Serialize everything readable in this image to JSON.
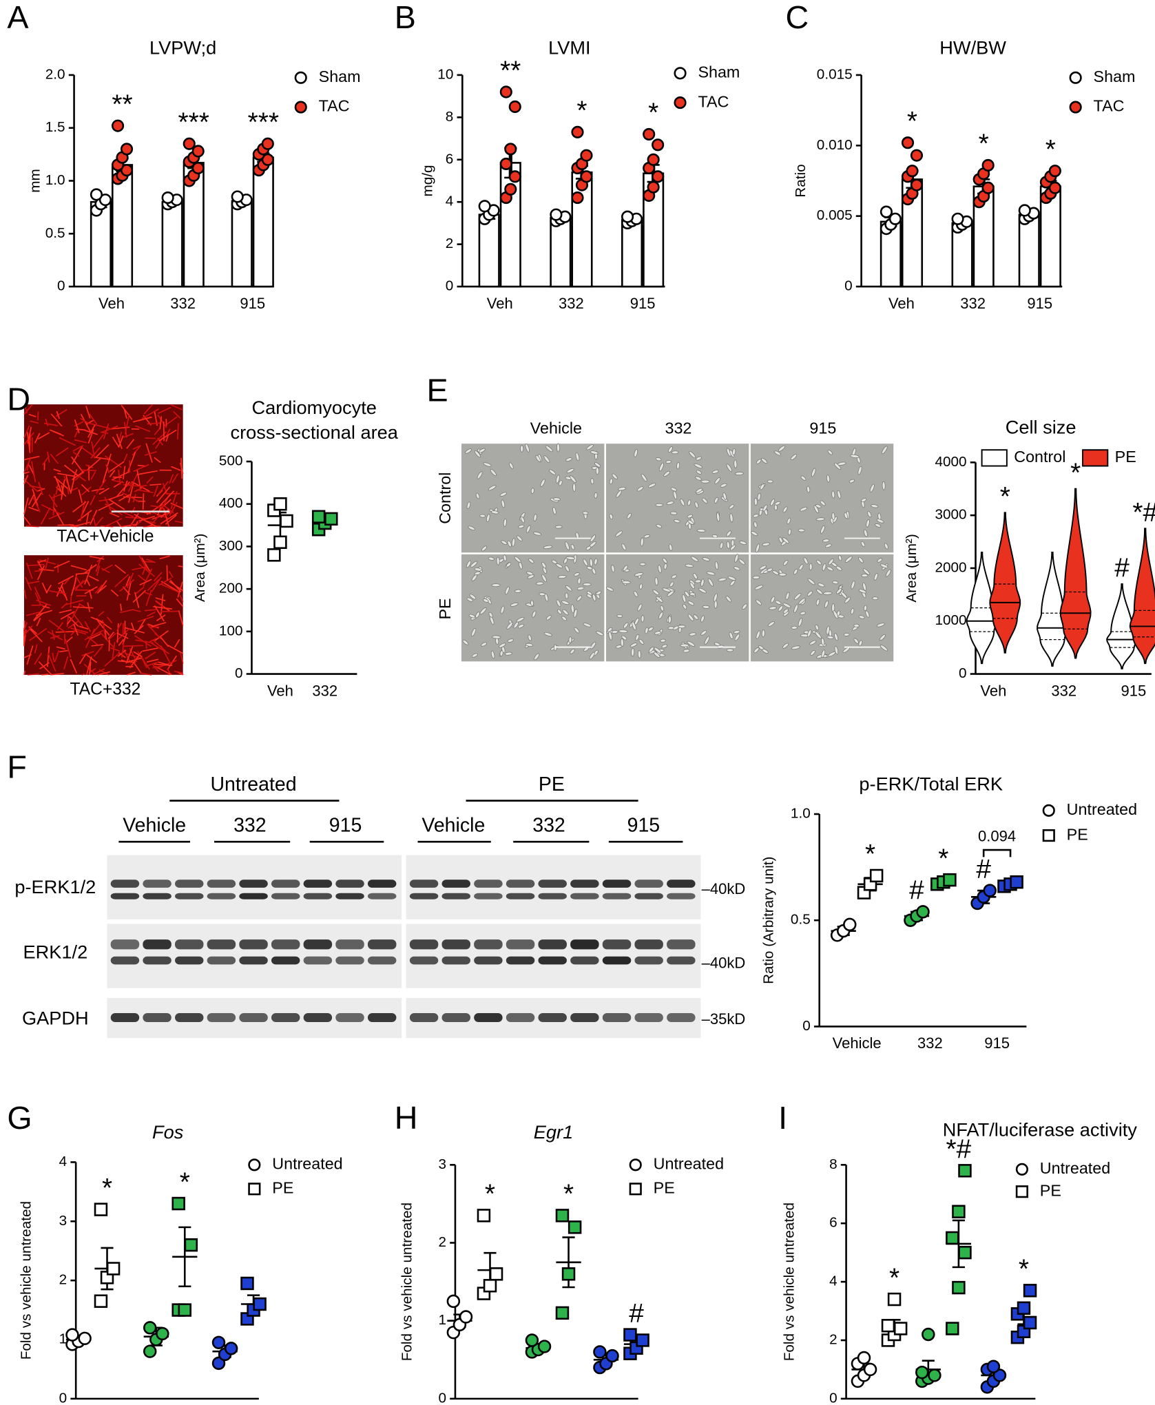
{
  "figure": {
    "panels": [
      "A",
      "B",
      "C",
      "D",
      "E",
      "F",
      "G",
      "H",
      "I"
    ],
    "D": {
      "labels": [
        "TAC+Vehicle",
        "TAC+332"
      ]
    },
    "E": {
      "columns": [
        "Vehicle",
        "332",
        "915"
      ],
      "rows": [
        "Control",
        "PE"
      ]
    },
    "F": {
      "groups": [
        "Untreated",
        "PE"
      ],
      "treatments": [
        "Vehicle",
        "332",
        "915",
        "Vehicle",
        "332",
        "915"
      ],
      "rows": [
        "p-ERK1/2",
        "ERK1/2",
        "GAPDH"
      ],
      "sizes": [
        "–40kD",
        "–40kD",
        "–35kD"
      ]
    }
  },
  "chart_data": [
    {
      "type": "bar",
      "title": "LVPW;d",
      "ylabel": "mm",
      "categories": [
        "Veh",
        "332",
        "915"
      ],
      "ylim": [
        0,
        2
      ],
      "yticks": [
        0,
        0.5,
        {
          "value": 1,
          "label": "1.0"
        },
        1.5,
        {
          "value": 2,
          "label": "2.0"
        }
      ],
      "series": [
        {
          "name": "Sham",
          "color": "#ffffff",
          "values": [
            0.8,
            0.8,
            0.81
          ],
          "errors": [
            0.05,
            0.02,
            0.02
          ],
          "points": [
            [
              0.72,
              0.78,
              0.82,
              0.87
            ],
            [
              0.78,
              0.8,
              0.82,
              0.84
            ],
            [
              0.78,
              0.8,
              0.82,
              0.85
            ]
          ]
        },
        {
          "name": "TAC",
          "color": "#e8311f",
          "values": [
            1.15,
            1.17,
            1.22
          ],
          "errors": [
            0.06,
            0.05,
            0.04
          ],
          "points": [
            [
              1.02,
              1.05,
              1.1,
              1.15,
              1.22,
              1.3,
              1.52
            ],
            [
              1.0,
              1.05,
              1.12,
              1.18,
              1.22,
              1.28,
              1.35
            ],
            [
              1.1,
              1.15,
              1.2,
              1.25,
              1.3,
              1.35
            ]
          ],
          "annotations": [
            "**",
            "***",
            "***"
          ]
        }
      ]
    },
    {
      "type": "bar",
      "title": "LVMI",
      "ylabel": "mg/g",
      "categories": [
        "Veh",
        "332",
        "915"
      ],
      "ylim": [
        0,
        10
      ],
      "yticks": [
        0,
        2,
        4,
        6,
        8,
        10
      ],
      "series": [
        {
          "name": "Sham",
          "color": "#ffffff",
          "values": [
            3.4,
            3.25,
            3.15
          ],
          "errors": [
            0.2,
            0.1,
            0.1
          ],
          "points": [
            [
              3.2,
              3.4,
              3.6,
              3.8
            ],
            [
              3.1,
              3.2,
              3.3,
              3.4
            ],
            [
              3.0,
              3.1,
              3.2,
              3.3
            ]
          ]
        },
        {
          "name": "TAC",
          "color": "#e8311f",
          "values": [
            5.85,
            5.4,
            5.35
          ],
          "errors": [
            0.7,
            0.3,
            0.4
          ],
          "points": [
            [
              4.2,
              4.6,
              5.2,
              5.8,
              6.5,
              8.5,
              9.2
            ],
            [
              4.2,
              4.8,
              5.2,
              5.6,
              5.8,
              6.2,
              7.3
            ],
            [
              4.3,
              4.7,
              5.2,
              5.6,
              6.0,
              6.7,
              7.2
            ]
          ],
          "annotations": [
            "**",
            "*",
            "*"
          ]
        }
      ]
    },
    {
      "type": "bar",
      "title": "HW/BW",
      "ylabel": "Ratio",
      "categories": [
        "Veh",
        "332",
        "915"
      ],
      "ylim": [
        0,
        0.015
      ],
      "yticks": [
        0,
        0.005,
        {
          "value": 0.01,
          "label": "0.010"
        },
        0.015
      ],
      "series": [
        {
          "name": "Sham",
          "color": "#ffffff",
          "values": [
            0.0046,
            0.0045,
            0.0051
          ],
          "errors": [
            0.0003,
            0.0002,
            0.0002
          ],
          "points": [
            [
              0.0041,
              0.0044,
              0.0048,
              0.0053
            ],
            [
              0.0042,
              0.0044,
              0.0046,
              0.0048
            ],
            [
              0.0048,
              0.005,
              0.0052,
              0.0054
            ]
          ]
        },
        {
          "name": "TAC",
          "color": "#e8311f",
          "values": [
            0.0076,
            0.0071,
            0.0071
          ],
          "errors": [
            0.0006,
            0.0005,
            0.0004
          ],
          "points": [
            [
              0.0062,
              0.0066,
              0.0072,
              0.0078,
              0.0082,
              0.0093,
              0.0102
            ],
            [
              0.006,
              0.0064,
              0.007,
              0.0076,
              0.008,
              0.0086
            ],
            [
              0.0063,
              0.0066,
              0.007,
              0.0074,
              0.0078,
              0.0082
            ]
          ],
          "annotations": [
            "*",
            "*",
            "*"
          ]
        }
      ]
    },
    {
      "type": "dot",
      "title": [
        "Cardiomyocyte",
        "cross-sectional area"
      ],
      "ylabel": "Area (μm²)",
      "categories": [
        "Veh",
        "332"
      ],
      "ylim": [
        0,
        500
      ],
      "yticks": [
        0,
        100,
        200,
        300,
        400,
        500
      ],
      "series": [
        {
          "marker": "square",
          "colors": [
            "#ffffff",
            "#2db34a"
          ],
          "values": [
            350,
            355
          ],
          "errors": [
            30,
            12
          ],
          "points": [
            [
              280,
              310,
              360,
              385,
              400
            ],
            [
              340,
              355,
              365,
              370
            ]
          ]
        }
      ]
    },
    {
      "type": "violin",
      "title": "Cell size",
      "ylabel": "Area (μm²)",
      "categories": [
        "Veh",
        "332",
        "915"
      ],
      "ylim": [
        0,
        4000
      ],
      "yticks": [
        0,
        1000,
        2000,
        3000,
        4000
      ],
      "series": [
        {
          "name": "Control",
          "color": "#ffffff",
          "values": [
            1000,
            870,
            650
          ],
          "quartiles": [
            [
              800,
              1250
            ],
            [
              650,
              1150
            ],
            [
              500,
              800
            ]
          ],
          "ranges": [
            [
              200,
              2300
            ],
            [
              150,
              2300
            ],
            [
              100,
              1700
            ]
          ],
          "annotations": [
            null,
            null,
            "#"
          ]
        },
        {
          "name": "PE",
          "color": "#e8311f",
          "values": [
            1350,
            1150,
            900
          ],
          "quartiles": [
            [
              1050,
              1700
            ],
            [
              850,
              1550
            ],
            [
              700,
              1200
            ]
          ],
          "ranges": [
            [
              400,
              3050
            ],
            [
              300,
              3500
            ],
            [
              200,
              2750
            ]
          ],
          "annotations": [
            "*",
            "*",
            "*#"
          ]
        }
      ]
    },
    {
      "type": "dot",
      "title": "p-ERK/Total ERK",
      "ylabel": "Ratio (Arbitrary unit)",
      "categories": [
        "Vehicle",
        "332",
        "915"
      ],
      "ylim": [
        0,
        1
      ],
      "yticks": [
        0,
        0.5,
        {
          "value": 1,
          "label": "1.0"
        }
      ],
      "bracket": {
        "label": "0.094",
        "category": 2
      },
      "series": [
        {
          "name": "Untreated",
          "marker": "circle",
          "colors": [
            "#ffffff",
            "#2db34a",
            "#1f3fd1"
          ],
          "values": [
            0.45,
            0.52,
            0.61
          ],
          "errors": [
            0.02,
            0.02,
            0.03
          ],
          "points": [
            [
              0.43,
              0.45,
              0.48
            ],
            [
              0.5,
              0.52,
              0.54
            ],
            [
              0.58,
              0.61,
              0.64
            ]
          ],
          "annotations": [
            null,
            "#",
            "#"
          ]
        },
        {
          "name": "PE",
          "marker": "square",
          "colors": [
            "#ffffff",
            "#2db34a",
            "#1f3fd1"
          ],
          "values": [
            0.67,
            0.68,
            0.67
          ],
          "errors": [
            0.03,
            0.01,
            0.01
          ],
          "points": [
            [
              0.63,
              0.67,
              0.71
            ],
            [
              0.67,
              0.68,
              0.69
            ],
            [
              0.66,
              0.67,
              0.68
            ]
          ],
          "annotations": [
            "*",
            "*",
            null
          ]
        }
      ]
    },
    {
      "type": "dot",
      "title": "Fos",
      "title_italic": true,
      "ylabel": "Fold vs vehicle untreated",
      "categories": [
        "Vehicle",
        "332",
        "915"
      ],
      "ylim": [
        0,
        4
      ],
      "yticks": [
        0,
        1,
        2,
        3,
        4
      ],
      "series": [
        {
          "name": "Untreated",
          "marker": "circle",
          "colors": [
            "#ffffff",
            "#2db34a",
            "#1f3fd1"
          ],
          "values": [
            1.0,
            1.05,
            0.8
          ],
          "errors": [
            0.04,
            0.15,
            0.1
          ],
          "points": [
            [
              0.92,
              0.97,
              1.02,
              1.08
            ],
            [
              0.8,
              1.0,
              1.1,
              1.2
            ],
            [
              0.6,
              0.75,
              0.85,
              0.95
            ]
          ]
        },
        {
          "name": "PE",
          "marker": "square",
          "colors": [
            "#ffffff",
            "#2db34a",
            "#1f3fd1"
          ],
          "values": [
            2.2,
            2.4,
            1.6
          ],
          "errors": [
            0.35,
            0.5,
            0.15
          ],
          "points": [
            [
              1.65,
              2.05,
              2.2,
              3.2
            ],
            [
              1.5,
              1.5,
              2.6,
              3.3
            ],
            [
              1.35,
              1.5,
              1.6,
              1.95
            ]
          ],
          "annotations": [
            "*",
            "*",
            null
          ]
        }
      ]
    },
    {
      "type": "dot",
      "title": "Egr1",
      "title_italic": true,
      "ylabel": "Fold vs vehicle untreated",
      "categories": [
        "Vehicle",
        "332",
        "915"
      ],
      "ylim": [
        0,
        3
      ],
      "yticks": [
        0,
        1,
        2,
        3
      ],
      "series": [
        {
          "name": "Untreated",
          "marker": "circle",
          "colors": [
            "#ffffff",
            "#2db34a",
            "#1f3fd1"
          ],
          "values": [
            1.0,
            0.65,
            0.5
          ],
          "errors": [
            0.08,
            0.05,
            0.06
          ],
          "points": [
            [
              0.85,
              0.95,
              1.05,
              1.25
            ],
            [
              0.6,
              0.63,
              0.67,
              0.75
            ],
            [
              0.4,
              0.45,
              0.55,
              0.6
            ]
          ]
        },
        {
          "name": "PE",
          "marker": "square",
          "colors": [
            "#ffffff",
            "#2db34a",
            "#1f3fd1"
          ],
          "values": [
            1.65,
            1.75,
            0.7
          ],
          "errors": [
            0.22,
            0.32,
            0.08
          ],
          "points": [
            [
              1.35,
              1.45,
              1.6,
              2.35
            ],
            [
              1.1,
              1.6,
              2.2,
              2.35
            ],
            [
              0.58,
              0.65,
              0.75,
              0.82
            ]
          ],
          "annotations": [
            "*",
            "*",
            "#"
          ]
        }
      ]
    },
    {
      "type": "dot",
      "title": "NFAT/luciferase activity",
      "ylabel": "Fold vs vehicle untreated",
      "categories": [
        "Vehicle",
        "332",
        "915"
      ],
      "ylim": [
        0,
        8
      ],
      "yticks": [
        0,
        2,
        4,
        6,
        8
      ],
      "series": [
        {
          "name": "Untreated",
          "marker": "circle",
          "colors": [
            "#ffffff",
            "#2db34a",
            "#1f3fd1"
          ],
          "values": [
            1.0,
            1.0,
            0.8
          ],
          "errors": [
            0.2,
            0.3,
            0.15
          ],
          "points": [
            [
              0.6,
              0.8,
              1.0,
              1.2,
              1.4
            ],
            [
              0.6,
              0.7,
              0.8,
              0.9,
              2.2
            ],
            [
              0.4,
              0.6,
              0.8,
              1.0,
              1.1
            ]
          ]
        },
        {
          "name": "PE",
          "marker": "square",
          "colors": [
            "#ffffff",
            "#2db34a",
            "#1f3fd1"
          ],
          "values": [
            2.4,
            5.3,
            2.8
          ],
          "errors": [
            0.3,
            0.8,
            0.25
          ],
          "points": [
            [
              2.0,
              2.2,
              2.4,
              2.5,
              3.4
            ],
            [
              2.4,
              3.8,
              5.0,
              5.5,
              6.4,
              7.8
            ],
            [
              2.1,
              2.3,
              2.6,
              2.9,
              3.1,
              3.7
            ]
          ],
          "annotations": [
            "*",
            "*#",
            "*"
          ]
        }
      ]
    }
  ]
}
